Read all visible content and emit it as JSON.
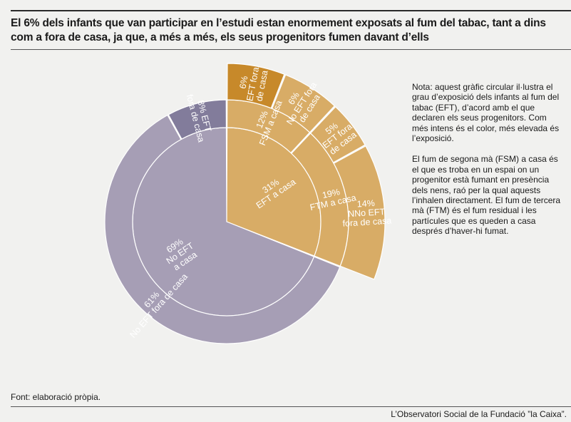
{
  "title": "El 6% dels infants que van participar en l’estudi estan enormement exposats al fum del tabac, tant a dins com a fora de casa, ja que, a més a més, els seus progenitors fumen davant d’ells",
  "note": {
    "p1": "Nota: aquest gràfic circular il·lustra el grau d’exposició dels infants al fum del tabac (EFT), d’acord amb el que declaren els seus progenitors. Com més intens és el color, més elevada és l’exposició.",
    "p2": "El fum de segona mà (FSM) a casa és el que es troba en un espai on un progenitor està fumant en presència dels nens, raó per la qual aquests l’inhalen directament. El fum de tercera mà (FTM) és el fum residual i les partícules que es queden a casa després d’haver-hi fumat."
  },
  "source": "Font: elaboració pròpia.",
  "credit": "L’Observatori Social de la Fundació ”la Caixa”.",
  "chart_data": {
    "type": "sunburst",
    "rings": [
      {
        "level": "inner",
        "segments": [
          {
            "label_lines": [
              "31%",
              "EFT a casa"
            ],
            "value": 31,
            "color": "#d8ac66"
          },
          {
            "label_lines": [
              "69%",
              "No EFT",
              "a casa"
            ],
            "value": 69,
            "color": "#a69eb5"
          }
        ]
      },
      {
        "level": "middle",
        "segments": [
          {
            "label_lines": [
              "12%",
              "FSM a casa"
            ],
            "value": 12,
            "color": "#d8ac66"
          },
          {
            "label_lines": [
              "19%",
              "FTM a casa"
            ],
            "value": 19,
            "color": "#d8ac66"
          },
          {
            "label_lines": [
              "61%",
              "No EFT fora de casa"
            ],
            "value": 61,
            "color": "#a69eb5"
          },
          {
            "label_lines": [
              "8% EFT",
              "fora de casa"
            ],
            "value": 8,
            "color": "#827c9b"
          }
        ]
      },
      {
        "level": "outer",
        "segments": [
          {
            "label_lines": [
              "6%",
              "EFT fora",
              "de casa"
            ],
            "value": 6,
            "color": "#c7892a"
          },
          {
            "label_lines": [
              "6%",
              "No EFT fora",
              "de casa"
            ],
            "value": 6,
            "color": "#d8ac66"
          },
          {
            "label_lines": [
              "5%",
              "EFT fora",
              "de casa"
            ],
            "value": 5,
            "color": "#d8ac66"
          },
          {
            "label_lines": [
              "14%",
              "NNo EFT",
              "fora de casa"
            ],
            "value": 14,
            "color": "#d8ac66"
          }
        ]
      }
    ]
  }
}
